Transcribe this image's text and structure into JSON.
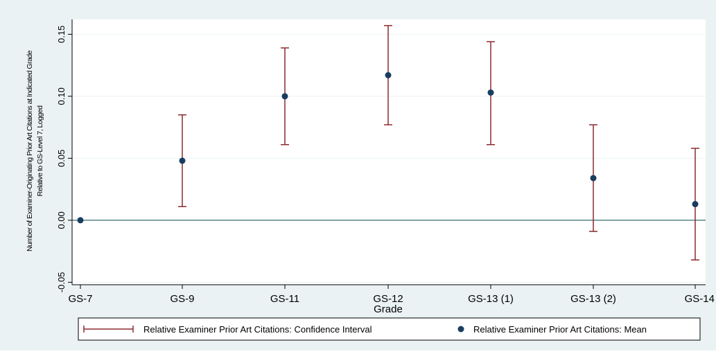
{
  "chart_data": {
    "type": "scatter",
    "title": "",
    "xlabel": "Grade",
    "ylabel": "Number of Examiner-Originating Prior Art Citations at Indicated Grade",
    "ylabel2": "Relative to GS-Level 7, Logged",
    "categories": [
      "GS-7",
      "GS-9",
      "GS-11",
      "GS-12",
      "GS-13 (1)",
      "GS-13 (2)",
      "GS-14"
    ],
    "yticks": [
      "-0.05",
      "0.00",
      "0.05",
      "0.10",
      "0.15"
    ],
    "ytick_values": [
      -0.05,
      0.0,
      0.05,
      0.1,
      0.15
    ],
    "ylim": [
      -0.052,
      0.162
    ],
    "grid": true,
    "reference_line_y": 0,
    "series": [
      {
        "name": "Relative Examiner Prior Art Citations: Confidence Interval",
        "kind": "errorbar",
        "color": "#8b2a2e",
        "lower": [
          null,
          0.011,
          0.061,
          0.077,
          0.061,
          -0.009,
          -0.032
        ],
        "upper": [
          null,
          0.085,
          0.139,
          0.157,
          0.144,
          0.077,
          0.058
        ]
      },
      {
        "name": "Relative Examiner Prior Art Citations: Mean",
        "kind": "point",
        "color": "#1a3d5f",
        "values": [
          0.0,
          0.048,
          0.1,
          0.117,
          0.103,
          0.034,
          0.013
        ]
      }
    ],
    "legend_position": "bottom",
    "colors": {
      "outer_background": "#eaf2f3",
      "plot_background": "#ffffff",
      "grid": "#eaf2f3",
      "reference_line": "#1e5b5b",
      "ci": "#8b2a2e",
      "mean": "#1a3d5f"
    }
  }
}
